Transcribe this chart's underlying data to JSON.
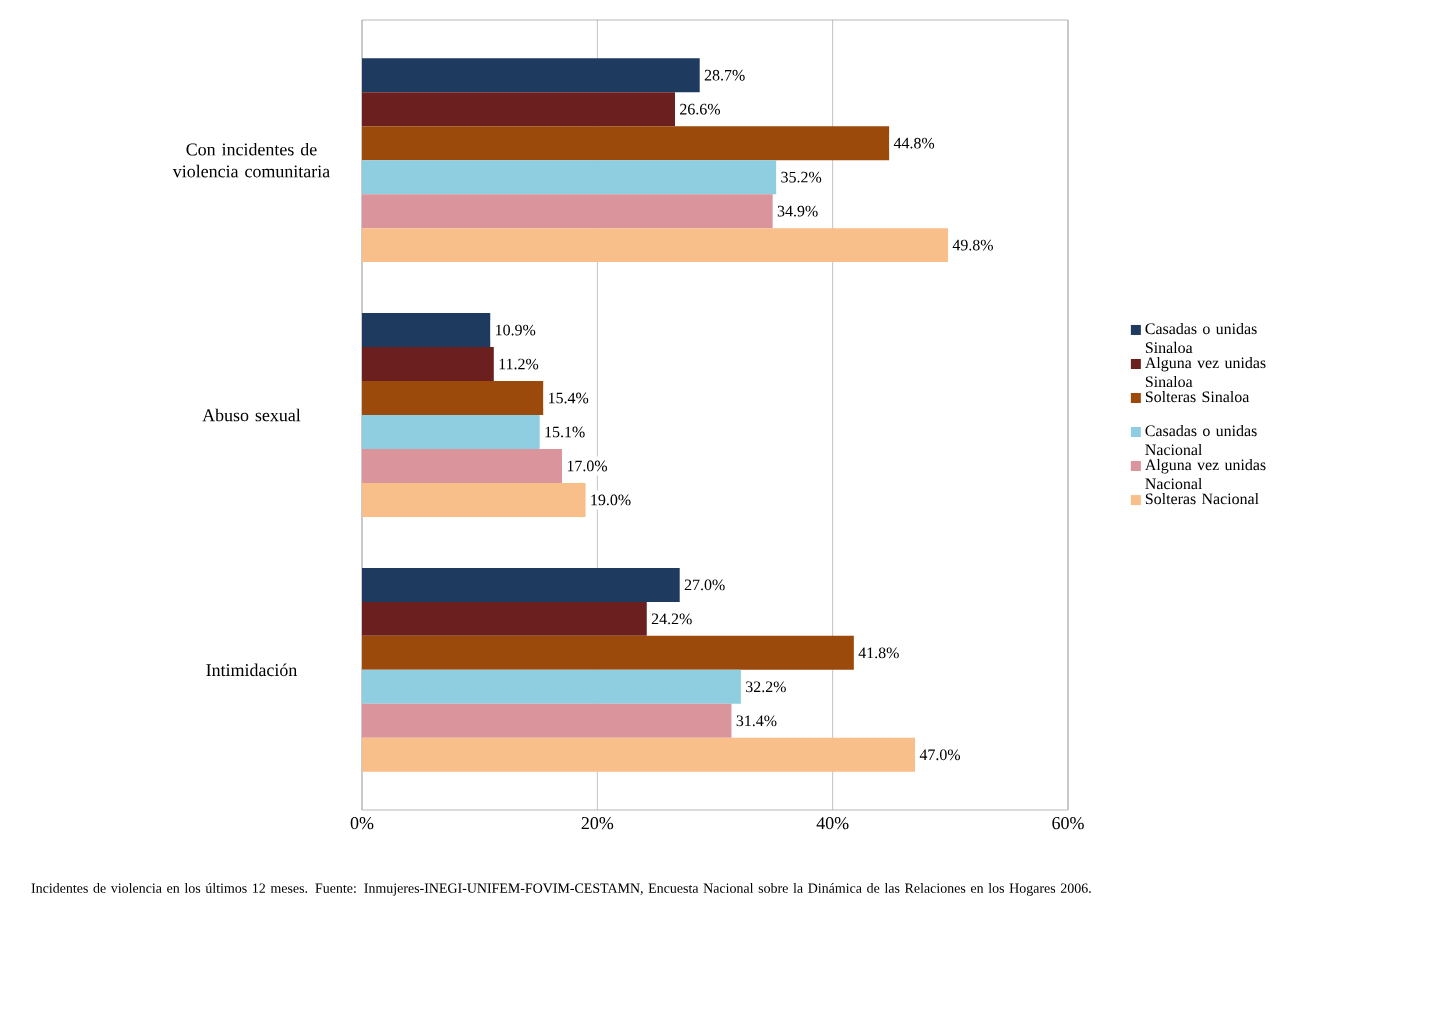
{
  "chart_data": {
    "type": "bar",
    "orientation": "horizontal",
    "categories": [
      "Con incidentes de violencia comunitaria",
      "Abuso sexual",
      "Intimidación"
    ],
    "series": [
      {
        "name": "Casadas o unidas Sinaloa",
        "color": "#1f3a5f",
        "values": [
          28.7,
          10.9,
          27.0
        ],
        "value_labels": [
          "28.7%",
          "10.9%",
          "27.0%"
        ]
      },
      {
        "name": "Alguna vez unidas Sinaloa",
        "color": "#6b1f1f",
        "values": [
          26.6,
          11.2,
          24.2
        ],
        "value_labels": [
          "26.6%",
          "11.2%",
          "24.2%"
        ]
      },
      {
        "name": "Solteras Sinaloa",
        "color": "#9c4a0c",
        "values": [
          44.8,
          15.4,
          41.8
        ],
        "value_labels": [
          "44.8%",
          "15.4%",
          "41.8%"
        ]
      },
      {
        "name": "Casadas o unidas Nacional",
        "color": "#8fcde0",
        "values": [
          35.2,
          15.1,
          32.2
        ],
        "value_labels": [
          "35.2%",
          "15.1%",
          "32.2%"
        ]
      },
      {
        "name": "Alguna vez unidas Nacional",
        "color": "#d9959b",
        "values": [
          34.9,
          17.0,
          31.4
        ],
        "value_labels": [
          "34.9%",
          "17.0%",
          "31.4%"
        ]
      },
      {
        "name": "Solteras Nacional",
        "color": "#f9bf8a",
        "values": [
          49.8,
          19.0,
          47.0
        ],
        "value_labels": [
          "49.8%",
          "19.0%",
          "47.0%"
        ]
      }
    ],
    "xlim": [
      0,
      60
    ],
    "xticks": [
      {
        "value": 0,
        "label": "0%"
      },
      {
        "value": 20,
        "label": "20%"
      },
      {
        "value": 40,
        "label": "40%"
      },
      {
        "value": 60,
        "label": "60%"
      }
    ],
    "grid": "x",
    "legend": "right",
    "annotations": [
      "Incidentes de violencia en los últimos 12 meses. Fuente: Inmujeres-INEGI-UNIFEM-FOVIM-CESTAMN, Encuesta Nacional sobre la Dinámica de las Relaciones en los Hogares 2006."
    ]
  }
}
